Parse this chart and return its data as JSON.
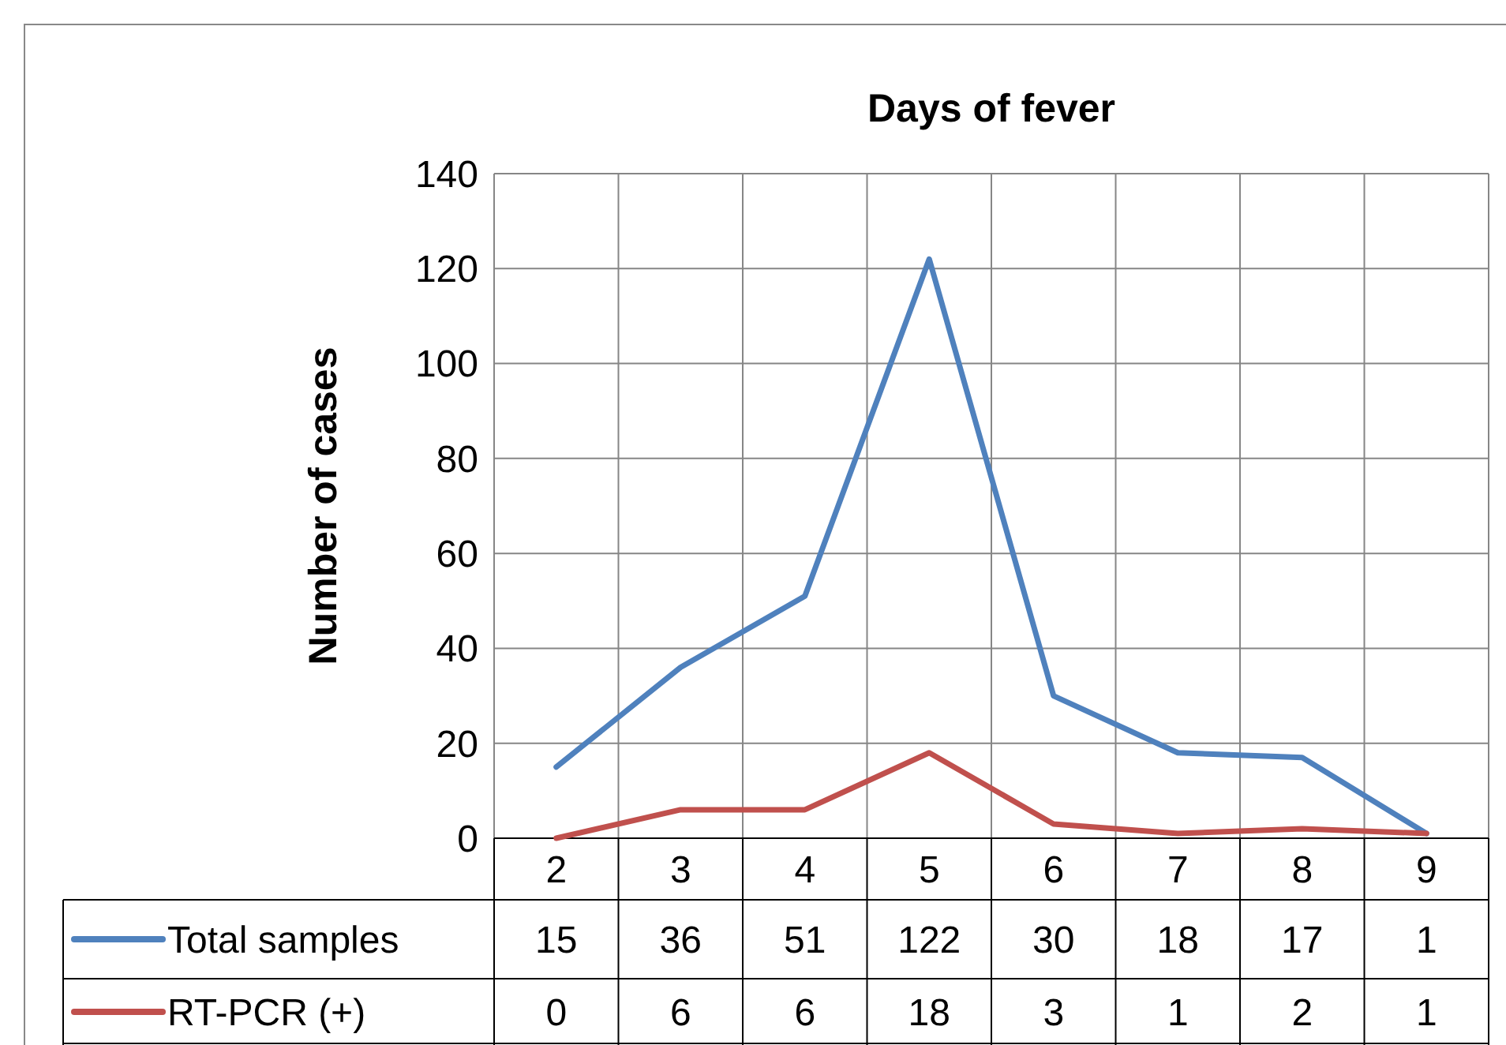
{
  "chart_data": {
    "type": "line",
    "title": "Days of fever",
    "ylabel": "Number of cases",
    "categories": [
      "2",
      "3",
      "4",
      "5",
      "6",
      "7",
      "8",
      "9"
    ],
    "series": [
      {
        "name": "Total samples",
        "color": "#4f81bd",
        "values": [
          15,
          36,
          51,
          122,
          30,
          18,
          17,
          1
        ]
      },
      {
        "name": "RT-PCR (+)",
        "color": "#c0504d",
        "values": [
          0,
          6,
          6,
          18,
          3,
          1,
          2,
          1
        ]
      }
    ],
    "ylim": [
      0,
      140
    ],
    "yticks": [
      0,
      20,
      40,
      60,
      80,
      100,
      120,
      140
    ],
    "grid": true,
    "legend": "bottom",
    "data_labels": true,
    "marker": "none",
    "line_style": "solid"
  }
}
